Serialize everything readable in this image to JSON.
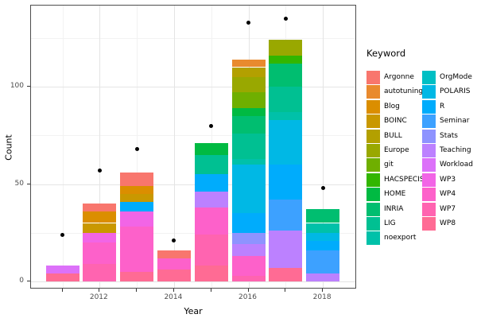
{
  "chart_data": {
    "type": "bar",
    "stacked": true,
    "points_overlay": "black dot above each bar",
    "title": "",
    "xlabel": "Year",
    "ylabel": "Count",
    "legend_title": "Keyword",
    "legend_position": "right",
    "grid": true,
    "ylim": [
      0,
      141
    ],
    "yticks": [
      0,
      50,
      100
    ],
    "ytick_labels": [
      "0",
      "50",
      "100"
    ],
    "yticks_minor": [
      25,
      75,
      125
    ],
    "categories": [
      "2011",
      "2012",
      "2013",
      "2014",
      "2015",
      "2016",
      "2017",
      "2018"
    ],
    "xticks_labeled": [
      "2012",
      "2014",
      "2016",
      "2018"
    ],
    "keywords": [
      "Argonne",
      "autotuning",
      "Blog",
      "BOINC",
      "BULL",
      "Europe",
      "git",
      "HACSPECIS",
      "HOME",
      "INRIA",
      "LIG",
      "noexport",
      "OrgMode",
      "POLARIS",
      "R",
      "Seminar",
      "Stats",
      "Teaching",
      "Workload",
      "WP3",
      "WP4",
      "WP7",
      "WP8"
    ],
    "colors": {
      "Argonne": "#F8766D",
      "autotuning": "#E98A2E",
      "Blog": "#DB8E00",
      "BOINC": "#C99800",
      "BULL": "#B3A000",
      "Europe": "#99A800",
      "git": "#6FAF00",
      "HACSPECIS": "#32B600",
      "HOME": "#00BA42",
      "INRIA": "#00BE70",
      "LIG": "#00C092",
      "noexport": "#00C1A9",
      "OrgMode": "#00BFC4",
      "POLARIS": "#00B8E5",
      "R": "#00ACFC",
      "Seminar": "#3DA1FF",
      "Stats": "#8E93FF",
      "Teaching": "#BC81FF",
      "Workload": "#DC71F9",
      "WP3": "#F265E6",
      "WP4": "#FD61CA",
      "WP7": "#FF64B0",
      "WP8": "#FF6B94"
    },
    "bars": [
      {
        "year": "2011",
        "total": 8,
        "segments_top_to_bottom": [
          [
            "Workload",
            4
          ],
          [
            "WP8",
            4
          ]
        ]
      },
      {
        "year": "2012",
        "total": 40,
        "segments_top_to_bottom": [
          [
            "Argonne",
            4
          ],
          [
            "Blog",
            6
          ],
          [
            "BOINC",
            5
          ],
          [
            "WP3",
            5
          ],
          [
            "WP4",
            11
          ],
          [
            "WP7",
            9
          ]
        ]
      },
      {
        "year": "2013",
        "total": 56,
        "segments_top_to_bottom": [
          [
            "Argonne",
            7
          ],
          [
            "Blog",
            4
          ],
          [
            "BOINC",
            4
          ],
          [
            "R",
            5
          ],
          [
            "WP3",
            8
          ],
          [
            "WP4",
            23
          ],
          [
            "WP8",
            5
          ]
        ]
      },
      {
        "year": "2014",
        "total": 16,
        "segments_top_to_bottom": [
          [
            "Argonne",
            4
          ],
          [
            "WP4",
            6
          ],
          [
            "WP8",
            6
          ]
        ]
      },
      {
        "year": "2015",
        "total": 71,
        "segments_top_to_bottom": [
          [
            "HOME",
            6
          ],
          [
            "LIG",
            10
          ],
          [
            "R",
            9
          ],
          [
            "Teaching",
            8
          ],
          [
            "WP4",
            14
          ],
          [
            "WP7",
            16
          ],
          [
            "WP8",
            8
          ]
        ]
      },
      {
        "year": "2016",
        "total": 114,
        "segments_top_to_bottom": [
          [
            "autotuning",
            4
          ],
          [
            "BULL",
            5
          ],
          [
            "Europe",
            8
          ],
          [
            "git",
            8
          ],
          [
            "HOME",
            4
          ],
          [
            "INRIA",
            9
          ],
          [
            "LIG",
            13
          ],
          [
            "noexport",
            3
          ],
          [
            "POLARIS",
            25
          ],
          [
            "R",
            10
          ],
          [
            "Stats",
            6
          ],
          [
            "Teaching",
            6
          ],
          [
            "WP4",
            10
          ],
          [
            "WP7",
            3
          ]
        ]
      },
      {
        "year": "2017",
        "total": 124,
        "segments_top_to_bottom": [
          [
            "Europe",
            8
          ],
          [
            "HACSPECIS",
            4
          ],
          [
            "INRIA",
            12
          ],
          [
            "LIG",
            13
          ],
          [
            "noexport",
            4
          ],
          [
            "POLARIS",
            23
          ],
          [
            "R",
            18
          ],
          [
            "Seminar",
            16
          ],
          [
            "Teaching",
            19
          ],
          [
            "WP8",
            7
          ]
        ]
      },
      {
        "year": "2018",
        "total": 37,
        "segments_top_to_bottom": [
          [
            "INRIA",
            7
          ],
          [
            "noexport",
            5
          ],
          [
            "POLARIS",
            4
          ],
          [
            "R",
            5
          ],
          [
            "Seminar",
            12
          ],
          [
            "Teaching",
            4
          ]
        ]
      }
    ],
    "points": [
      24,
      57,
      68,
      21,
      80,
      133,
      135,
      48
    ]
  }
}
